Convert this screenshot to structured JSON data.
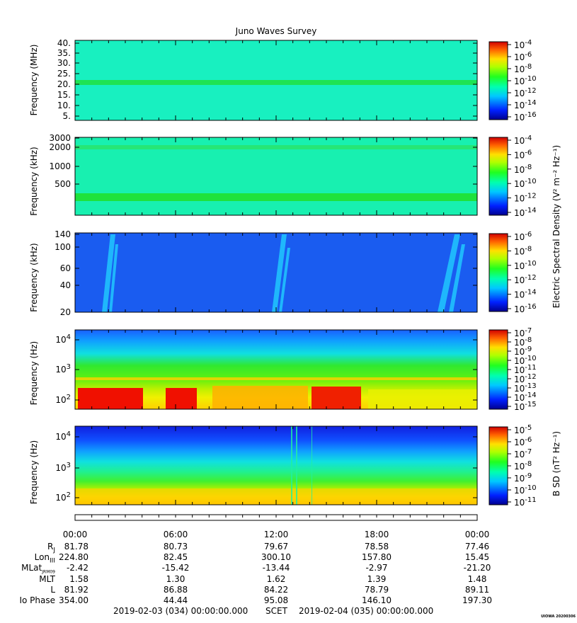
{
  "title": "Juno Waves Survey",
  "panels": [
    {
      "ylabel": "Frequency (MHz)",
      "yticks": [
        "40.",
        "35.",
        "30.",
        "25.",
        "20.",
        "15.",
        "10.",
        "5."
      ],
      "cbar_ticks": [
        {
          "b": "10",
          "e": "-4"
        },
        {
          "b": "10",
          "e": "-6"
        },
        {
          "b": "10",
          "e": "-8"
        },
        {
          "b": "10",
          "e": "-10"
        },
        {
          "b": "10",
          "e": "-12"
        },
        {
          "b": "10",
          "e": "-14"
        },
        {
          "b": "10",
          "e": "-16"
        }
      ]
    },
    {
      "ylabel": "Frequency (kHz)",
      "yticks": [
        "3000",
        "2000",
        "1000",
        "500"
      ],
      "cbar_ticks": [
        {
          "b": "10",
          "e": "-4"
        },
        {
          "b": "10",
          "e": "-6"
        },
        {
          "b": "10",
          "e": "-8"
        },
        {
          "b": "10",
          "e": "-10"
        },
        {
          "b": "10",
          "e": "-12"
        },
        {
          "b": "10",
          "e": "-14"
        }
      ]
    },
    {
      "ylabel": "Frequency (kHz)",
      "yticks": [
        "140",
        "100",
        "60",
        "40",
        "20"
      ],
      "cbar_ticks": [
        {
          "b": "10",
          "e": "-6"
        },
        {
          "b": "10",
          "e": "-8"
        },
        {
          "b": "10",
          "e": "-10"
        },
        {
          "b": "10",
          "e": "-12"
        },
        {
          "b": "10",
          "e": "-14"
        },
        {
          "b": "10",
          "e": "-16"
        }
      ]
    },
    {
      "ylabel": "Frequency (Hz)",
      "yticks": [
        {
          "b": "10",
          "e": "4"
        },
        {
          "b": "10",
          "e": "3"
        },
        {
          "b": "10",
          "e": "2"
        }
      ],
      "cbar_ticks": [
        {
          "b": "10",
          "e": "-7"
        },
        {
          "b": "10",
          "e": "-8"
        },
        {
          "b": "10",
          "e": "-9"
        },
        {
          "b": "10",
          "e": "-10"
        },
        {
          "b": "10",
          "e": "-11"
        },
        {
          "b": "10",
          "e": "-12"
        },
        {
          "b": "10",
          "e": "-13"
        },
        {
          "b": "10",
          "e": "-14"
        },
        {
          "b": "10",
          "e": "-15"
        }
      ]
    },
    {
      "ylabel": "Frequency (Hz)",
      "yticks": [
        {
          "b": "10",
          "e": "4"
        },
        {
          "b": "10",
          "e": "3"
        },
        {
          "b": "10",
          "e": "2"
        }
      ],
      "cbar_ticks": [
        {
          "b": "10",
          "e": "-5"
        },
        {
          "b": "10",
          "e": "-6"
        },
        {
          "b": "10",
          "e": "-7"
        },
        {
          "b": "10",
          "e": "-8"
        },
        {
          "b": "10",
          "e": "-9"
        },
        {
          "b": "10",
          "e": "-10"
        },
        {
          "b": "10",
          "e": "-11"
        }
      ]
    }
  ],
  "efield_label": "Electric Spectral Density (V² m⁻² Hz⁻¹)",
  "bfield_label": "B SD (nT² Hz⁻¹)",
  "ephemeris": {
    "times": [
      "00:00",
      "06:00",
      "12:00",
      "18:00",
      "00:00"
    ],
    "rows": [
      {
        "label": "R",
        "sub": "J",
        "values": [
          "81.78",
          "80.73",
          "79.67",
          "78.58",
          "77.46"
        ]
      },
      {
        "label": "Lon",
        "sub": "III",
        "values": [
          "224.80",
          "82.45",
          "300.10",
          "157.80",
          "15.45"
        ]
      },
      {
        "label": "MLat",
        "sub": "JRM09",
        "values": [
          "-2.42",
          "-15.42",
          "-13.44",
          "-2.97",
          "-21.20"
        ]
      },
      {
        "label": "MLT",
        "sub": "",
        "values": [
          "1.58",
          "1.30",
          "1.62",
          "1.39",
          "1.48"
        ]
      },
      {
        "label": "L",
        "sub": "",
        "values": [
          "81.92",
          "86.88",
          "84.22",
          "78.79",
          "89.11"
        ]
      },
      {
        "label": "Io Phase",
        "sub": "",
        "values": [
          "354.00",
          "44.44",
          "95.08",
          "146.10",
          "197.30"
        ]
      }
    ]
  },
  "footer": {
    "start": "2019-02-03 (034) 00:00:00.000",
    "mid": "SCET",
    "end": "2019-02-04 (035) 00:00:00.000"
  },
  "credit": "UIOWA 20200306",
  "chart_data": {
    "type": "heatmap",
    "title": "Juno Waves Survey",
    "x_range": [
      "2019-02-03 00:00",
      "2019-02-04 00:00"
    ],
    "panels": [
      {
        "ylabel": "Frequency (MHz)",
        "ylim": [
          3,
          41
        ],
        "scale": "linear",
        "clim_exp": [
          -17,
          -4
        ],
        "features": "uniform background with emission band near 21 MHz"
      },
      {
        "ylabel": "Frequency (kHz)",
        "ylim": [
          150,
          3000
        ],
        "scale": "log",
        "clim_exp": [
          -15,
          -4
        ],
        "features": "bands near 2000 kHz and 250 kHz"
      },
      {
        "ylabel": "Frequency (kHz)",
        "ylim": [
          20,
          140
        ],
        "scale": "linear",
        "clim_exp": [
          -17,
          -6
        ],
        "features": "drifting bursts near 02:30, 12:00, 21:30"
      },
      {
        "ylabel": "Frequency (Hz)",
        "ylim": [
          60,
          20000
        ],
        "scale": "log",
        "clim_exp": [
          -15,
          -7
        ],
        "features": "intense low-frequency emission below 300 Hz, line near 500 Hz"
      },
      {
        "ylabel": "Frequency (Hz)",
        "ylim": [
          50,
          20000
        ],
        "scale": "log",
        "clim_exp": [
          -11,
          -4.5
        ],
        "features": "magnetic background intensifying below 200 Hz"
      }
    ]
  }
}
